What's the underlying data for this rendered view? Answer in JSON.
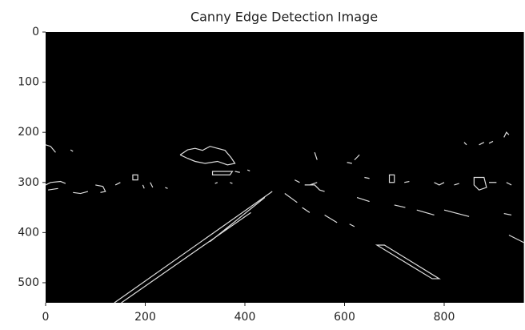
{
  "chart_data": {
    "type": "image",
    "title": "Canny Edge Detection Image",
    "xlim": [
      0,
      960
    ],
    "ylim": [
      540,
      0
    ],
    "xticks": [
      0,
      200,
      400,
      600,
      800
    ],
    "yticks": [
      0,
      100,
      200,
      300,
      400,
      500
    ]
  }
}
